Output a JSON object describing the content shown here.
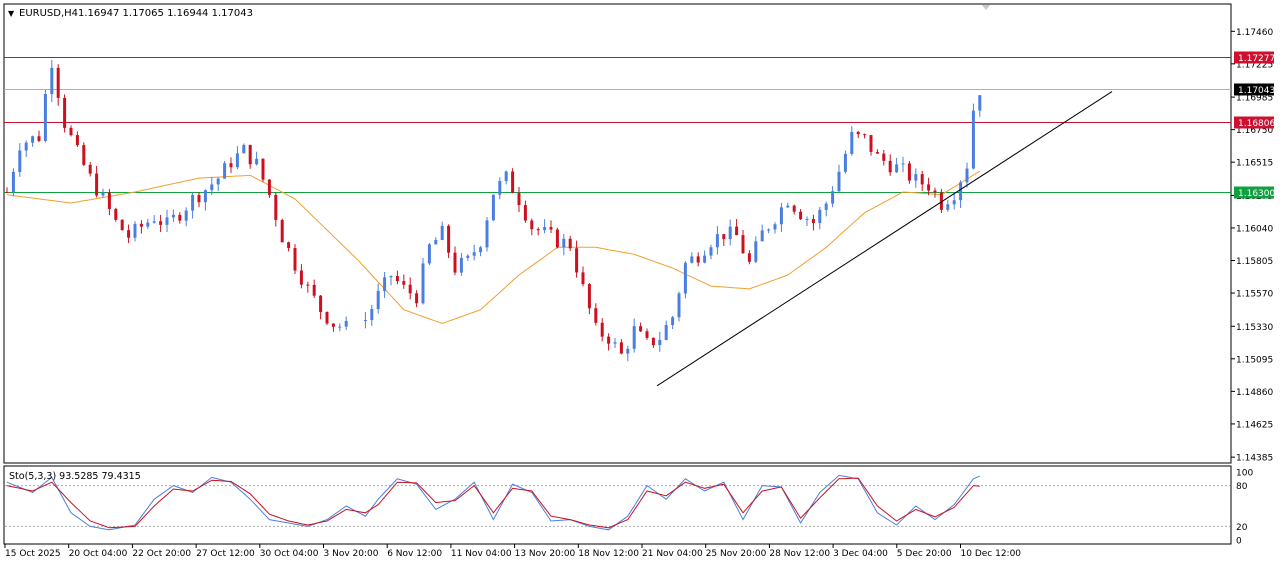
{
  "header": {
    "arrow_glyph": "▼",
    "symbol": "EURUSD,H4",
    "ohlc": "1.16947 1.17065 1.16944 1.17043"
  },
  "indicator": {
    "label": "Sto(5,3,3) 93.5285 79.4315",
    "levels": [
      80,
      20
    ],
    "scale_labels": [
      "100",
      "80",
      "20",
      "0"
    ],
    "main_color": "#4a7fe0",
    "signal_color": "#cc1020",
    "level_color": "#aaaaaa"
  },
  "chart_data": [
    {
      "type": "candlestick",
      "symbol": "EURUSD",
      "timeframe": "H4",
      "ylim": [
        1.1435,
        1.1765
      ],
      "y_ticks": [
        "1.17460",
        "1.17225",
        "1.16985",
        "1.16750",
        "1.16515",
        "1.16275",
        "1.16040",
        "1.15805",
        "1.15570",
        "1.15330",
        "1.15095",
        "1.14860",
        "1.14625",
        "1.14385"
      ],
      "x_ticks": [
        "15 Oct 2025",
        "20 Oct 04:00",
        "22 Oct 20:00",
        "27 Oct 12:00",
        "30 Oct 04:00",
        "3 Nov 20:00",
        "6 Nov 12:00",
        "11 Nov 04:00",
        "13 Nov 20:00",
        "18 Nov 12:00",
        "21 Nov 04:00",
        "25 Nov 20:00",
        "28 Nov 12:00",
        "3 Dec 04:00",
        "5 Dec 20:00",
        "10 Dec 12:00"
      ],
      "bull_color": "#4a7fe0",
      "bear_color": "#cc1020",
      "moving_average_color": "#f0a030",
      "trendline_color": "#000000",
      "horizontal_lines": [
        {
          "price": 1.17277,
          "label": "1.17277",
          "color": "#cc1030"
        },
        {
          "price": 1.17043,
          "label": "1.17043",
          "color": "#b0b0b0",
          "label_bg": "#000000"
        },
        {
          "price": 1.16806,
          "label": "1.16806",
          "color": "#cc1030"
        },
        {
          "price": 1.163,
          "label": "1.16300",
          "color": "#10a040"
        }
      ],
      "trendline": {
        "from": {
          "time": "21 Nov 04:00",
          "price": 1.149
        },
        "to": {
          "time": "11 Dec",
          "price": 1.1693
        }
      },
      "close_path": [
        [
          0,
          1.163
        ],
        [
          2,
          1.1665
        ],
        [
          5,
          1.167
        ],
        [
          6,
          1.17
        ],
        [
          7,
          1.1725
        ],
        [
          9,
          1.168
        ],
        [
          11,
          1.1658
        ],
        [
          13,
          1.164
        ],
        [
          15,
          1.1625
        ],
        [
          17,
          1.1608
        ],
        [
          19,
          1.1598
        ],
        [
          21,
          1.1605
        ],
        [
          23,
          1.1612
        ],
        [
          25,
          1.1606
        ],
        [
          27,
          1.1615
        ],
        [
          29,
          1.1625
        ],
        [
          31,
          1.1632
        ],
        [
          33,
          1.164
        ],
        [
          35,
          1.1652
        ],
        [
          37,
          1.166
        ],
        [
          39,
          1.165
        ],
        [
          41,
          1.1628
        ],
        [
          43,
          1.1598
        ],
        [
          45,
          1.1578
        ],
        [
          47,
          1.156
        ],
        [
          49,
          1.1545
        ],
        [
          51,
          1.1535
        ],
        [
          53,
          1.1532
        ],
        [
          56,
          1.1538
        ],
        [
          58,
          1.1555
        ],
        [
          60,
          1.157
        ],
        [
          62,
          1.156
        ],
        [
          64,
          1.1555
        ],
        [
          66,
          1.159
        ],
        [
          68,
          1.16
        ],
        [
          70,
          1.1575
        ],
        [
          72,
          1.158
        ],
        [
          74,
          1.1595
        ],
        [
          76,
          1.163
        ],
        [
          78,
          1.164
        ],
        [
          80,
          1.1625
        ],
        [
          82,
          1.1605
        ],
        [
          84,
          1.16
        ],
        [
          86,
          1.1595
        ],
        [
          88,
          1.1592
        ],
        [
          90,
          1.156
        ],
        [
          92,
          1.153
        ],
        [
          94,
          1.1525
        ],
        [
          96,
          1.1512
        ],
        [
          98,
          1.153
        ],
        [
          100,
          1.152
        ],
        [
          102,
          1.1525
        ],
        [
          104,
          1.154
        ],
        [
          106,
          1.1578
        ],
        [
          108,
          1.1585
        ],
        [
          110,
          1.1595
        ],
        [
          112,
          1.16
        ],
        [
          114,
          1.1598
        ],
        [
          116,
          1.1578
        ],
        [
          118,
          1.16
        ],
        [
          120,
          1.1612
        ],
        [
          122,
          1.1625
        ],
        [
          124,
          1.1615
        ],
        [
          126,
          1.1608
        ],
        [
          128,
          1.1622
        ],
        [
          130,
          1.1645
        ],
        [
          132,
          1.167
        ],
        [
          134,
          1.1668
        ],
        [
          136,
          1.1655
        ],
        [
          138,
          1.165
        ],
        [
          140,
          1.1645
        ],
        [
          142,
          1.1638
        ],
        [
          144,
          1.1635
        ],
        [
          146,
          1.1622
        ],
        [
          148,
          1.163
        ],
        [
          149,
          1.164
        ],
        [
          150,
          1.165
        ],
        [
          151,
          1.169
        ],
        [
          152,
          1.17043
        ]
      ],
      "moving_average": [
        [
          0,
          1.1628
        ],
        [
          10,
          1.1622
        ],
        [
          20,
          1.163
        ],
        [
          30,
          1.164
        ],
        [
          38,
          1.1642
        ],
        [
          45,
          1.1625
        ],
        [
          55,
          1.158
        ],
        [
          62,
          1.1545
        ],
        [
          68,
          1.1535
        ],
        [
          74,
          1.1545
        ],
        [
          80,
          1.157
        ],
        [
          86,
          1.159
        ],
        [
          92,
          1.159
        ],
        [
          98,
          1.1585
        ],
        [
          104,
          1.1575
        ],
        [
          110,
          1.1562
        ],
        [
          116,
          1.156
        ],
        [
          122,
          1.157
        ],
        [
          128,
          1.159
        ],
        [
          134,
          1.1615
        ],
        [
          140,
          1.163
        ],
        [
          146,
          1.1628
        ],
        [
          152,
          1.1645
        ]
      ]
    },
    {
      "type": "line",
      "name": "Sto(5,3,3)",
      "ylim": [
        0,
        100
      ],
      "main": [
        [
          0,
          85
        ],
        [
          4,
          70
        ],
        [
          7,
          92
        ],
        [
          10,
          40
        ],
        [
          13,
          20
        ],
        [
          16,
          15
        ],
        [
          20,
          22
        ],
        [
          23,
          60
        ],
        [
          26,
          80
        ],
        [
          29,
          70
        ],
        [
          32,
          92
        ],
        [
          35,
          85
        ],
        [
          38,
          60
        ],
        [
          41,
          30
        ],
        [
          44,
          25
        ],
        [
          47,
          20
        ],
        [
          50,
          30
        ],
        [
          53,
          50
        ],
        [
          56,
          35
        ],
        [
          58,
          60
        ],
        [
          61,
          90
        ],
        [
          64,
          82
        ],
        [
          67,
          45
        ],
        [
          70,
          60
        ],
        [
          73,
          85
        ],
        [
          76,
          30
        ],
        [
          79,
          82
        ],
        [
          82,
          70
        ],
        [
          85,
          28
        ],
        [
          88,
          30
        ],
        [
          91,
          20
        ],
        [
          94,
          15
        ],
        [
          97,
          35
        ],
        [
          100,
          80
        ],
        [
          103,
          60
        ],
        [
          106,
          90
        ],
        [
          109,
          72
        ],
        [
          112,
          85
        ],
        [
          115,
          30
        ],
        [
          118,
          80
        ],
        [
          121,
          78
        ],
        [
          124,
          25
        ],
        [
          127,
          70
        ],
        [
          130,
          95
        ],
        [
          133,
          90
        ],
        [
          136,
          40
        ],
        [
          139,
          22
        ],
        [
          142,
          50
        ],
        [
          145,
          30
        ],
        [
          148,
          52
        ],
        [
          151,
          90
        ],
        [
          152,
          94
        ]
      ],
      "signal": [
        [
          0,
          80
        ],
        [
          4,
          72
        ],
        [
          7,
          85
        ],
        [
          10,
          55
        ],
        [
          13,
          28
        ],
        [
          16,
          18
        ],
        [
          20,
          20
        ],
        [
          23,
          50
        ],
        [
          26,
          75
        ],
        [
          29,
          72
        ],
        [
          32,
          88
        ],
        [
          35,
          86
        ],
        [
          38,
          68
        ],
        [
          41,
          38
        ],
        [
          44,
          28
        ],
        [
          47,
          22
        ],
        [
          50,
          28
        ],
        [
          53,
          45
        ],
        [
          56,
          40
        ],
        [
          58,
          52
        ],
        [
          61,
          85
        ],
        [
          64,
          84
        ],
        [
          67,
          55
        ],
        [
          70,
          58
        ],
        [
          73,
          80
        ],
        [
          76,
          40
        ],
        [
          79,
          76
        ],
        [
          82,
          72
        ],
        [
          85,
          35
        ],
        [
          88,
          30
        ],
        [
          91,
          22
        ],
        [
          94,
          18
        ],
        [
          97,
          30
        ],
        [
          100,
          72
        ],
        [
          103,
          65
        ],
        [
          106,
          85
        ],
        [
          109,
          76
        ],
        [
          112,
          82
        ],
        [
          115,
          40
        ],
        [
          118,
          72
        ],
        [
          121,
          78
        ],
        [
          124,
          32
        ],
        [
          127,
          62
        ],
        [
          130,
          90
        ],
        [
          133,
          91
        ],
        [
          136,
          50
        ],
        [
          139,
          28
        ],
        [
          142,
          45
        ],
        [
          145,
          34
        ],
        [
          148,
          48
        ],
        [
          151,
          80
        ],
        [
          152,
          79
        ]
      ]
    }
  ]
}
